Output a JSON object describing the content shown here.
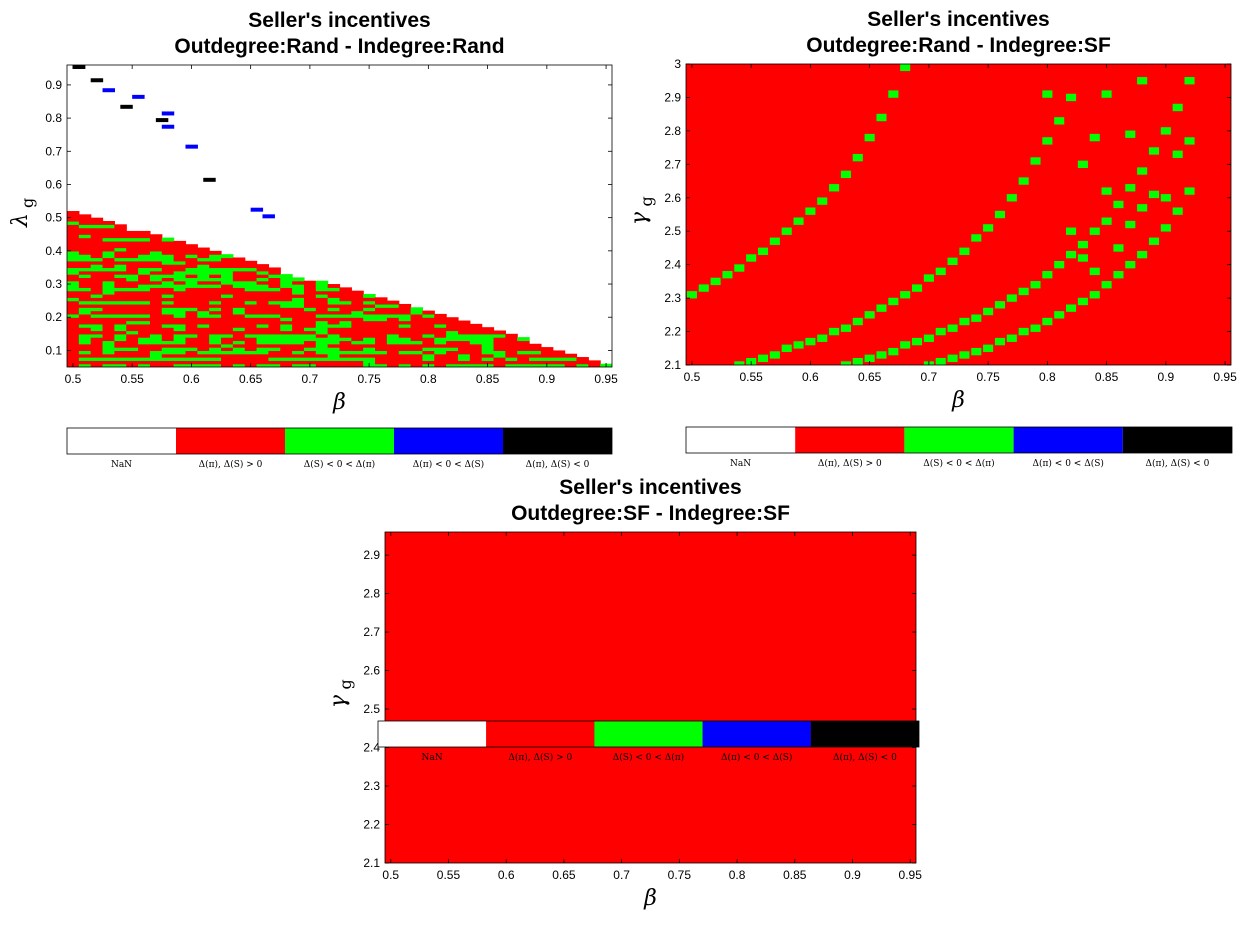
{
  "colorbar": {
    "labels": [
      "NaN",
      "Δ(π), Δ(S) > 0",
      "Δ(S) < 0 < Δ(π)",
      "Δ(π) < 0 < Δ(S)",
      "Δ(π), Δ(S) < 0"
    ],
    "colors": [
      "#ffffff",
      "#ff0000",
      "#00ff00",
      "#0000ff",
      "#000000"
    ]
  },
  "chart_data": [
    {
      "type": "heatmap",
      "title": [
        "Seller's incentives",
        "Outdegree:Rand - Indegree:Rand"
      ],
      "xlabel": "β",
      "ylabel": "λ",
      "ylabel_sub": "g",
      "xlim": [
        0.495,
        0.955
      ],
      "ylim": [
        0.05,
        0.96
      ],
      "xticks": [
        "0.5",
        "0.55",
        "0.6",
        "0.65",
        "0.7",
        "0.75",
        "0.8",
        "0.85",
        "0.9",
        "0.95"
      ],
      "yticks": [
        "0.1",
        "0.2",
        "0.3",
        "0.4",
        "0.5",
        "0.6",
        "0.7",
        "0.8",
        "0.9"
      ],
      "xtick_values": [
        0.5,
        0.55,
        0.6,
        0.65,
        0.7,
        0.75,
        0.8,
        0.85,
        0.9,
        0.95
      ],
      "ytick_values": [
        0.1,
        0.2,
        0.3,
        0.4,
        0.5,
        0.6,
        0.7,
        0.8,
        0.9
      ],
      "background_class": "Δ(π), Δ(S) > 0",
      "region": "lower-left triangle: cells exist where λ_g ≤ 1 - β",
      "minority_class": "Δ(S) < 0 < Δ(π)",
      "blue_cells": [
        [
          0.525,
          0.88
        ],
        [
          0.55,
          0.86
        ],
        [
          0.575,
          0.81
        ],
        [
          0.575,
          0.77
        ],
        [
          0.595,
          0.71
        ],
        [
          0.65,
          0.52
        ],
        [
          0.66,
          0.5
        ]
      ],
      "black_cells": [
        [
          0.5,
          0.95
        ],
        [
          0.515,
          0.91
        ],
        [
          0.54,
          0.83
        ],
        [
          0.57,
          0.79
        ],
        [
          0.61,
          0.61
        ]
      ]
    },
    {
      "type": "heatmap",
      "title": [
        "Seller's incentives",
        "Outdegree:Rand - Indegree:SF"
      ],
      "xlabel": "β",
      "ylabel": "γ",
      "ylabel_sub": "g",
      "xlim": [
        0.495,
        0.955
      ],
      "ylim": [
        2.1,
        3.0
      ],
      "xticks": [
        "0.5",
        "0.55",
        "0.6",
        "0.65",
        "0.7",
        "0.75",
        "0.8",
        "0.85",
        "0.9",
        "0.95"
      ],
      "yticks": [
        "2.1",
        "2.2",
        "2.3",
        "2.4",
        "2.5",
        "2.6",
        "2.7",
        "2.8",
        "2.9",
        "3"
      ],
      "xtick_values": [
        0.5,
        0.55,
        0.6,
        0.65,
        0.7,
        0.75,
        0.8,
        0.85,
        0.9,
        0.95
      ],
      "ytick_values": [
        2.1,
        2.2,
        2.3,
        2.4,
        2.5,
        2.6,
        2.7,
        2.8,
        2.9,
        3.0
      ],
      "background_class": "Δ(π), Δ(S) > 0",
      "minority_class": "Δ(S) < 0 < Δ(π)",
      "green_cells": [
        [
          0.5,
          2.31
        ],
        [
          0.51,
          2.33
        ],
        [
          0.52,
          2.35
        ],
        [
          0.53,
          2.37
        ],
        [
          0.54,
          2.39
        ],
        [
          0.55,
          2.42
        ],
        [
          0.56,
          2.44
        ],
        [
          0.57,
          2.47
        ],
        [
          0.58,
          2.5
        ],
        [
          0.59,
          2.53
        ],
        [
          0.6,
          2.56
        ],
        [
          0.61,
          2.59
        ],
        [
          0.62,
          2.63
        ],
        [
          0.63,
          2.67
        ],
        [
          0.64,
          2.72
        ],
        [
          0.65,
          2.78
        ],
        [
          0.66,
          2.84
        ],
        [
          0.67,
          2.91
        ],
        [
          0.68,
          2.99
        ],
        [
          0.54,
          2.1
        ],
        [
          0.55,
          2.11
        ],
        [
          0.56,
          2.12
        ],
        [
          0.57,
          2.13
        ],
        [
          0.58,
          2.15
        ],
        [
          0.59,
          2.16
        ],
        [
          0.6,
          2.17
        ],
        [
          0.61,
          2.18
        ],
        [
          0.62,
          2.2
        ],
        [
          0.63,
          2.21
        ],
        [
          0.64,
          2.23
        ],
        [
          0.65,
          2.25
        ],
        [
          0.66,
          2.27
        ],
        [
          0.67,
          2.29
        ],
        [
          0.68,
          2.31
        ],
        [
          0.69,
          2.33
        ],
        [
          0.7,
          2.36
        ],
        [
          0.71,
          2.38
        ],
        [
          0.72,
          2.41
        ],
        [
          0.73,
          2.44
        ],
        [
          0.74,
          2.48
        ],
        [
          0.75,
          2.51
        ],
        [
          0.76,
          2.55
        ],
        [
          0.77,
          2.6
        ],
        [
          0.78,
          2.65
        ],
        [
          0.79,
          2.71
        ],
        [
          0.8,
          2.77
        ],
        [
          0.81,
          2.83
        ],
        [
          0.82,
          2.9
        ],
        [
          0.63,
          2.1
        ],
        [
          0.64,
          2.11
        ],
        [
          0.65,
          2.12
        ],
        [
          0.66,
          2.13
        ],
        [
          0.67,
          2.14
        ],
        [
          0.68,
          2.16
        ],
        [
          0.69,
          2.17
        ],
        [
          0.7,
          2.18
        ],
        [
          0.71,
          2.2
        ],
        [
          0.72,
          2.21
        ],
        [
          0.73,
          2.23
        ],
        [
          0.74,
          2.24
        ],
        [
          0.75,
          2.26
        ],
        [
          0.76,
          2.28
        ],
        [
          0.77,
          2.3
        ],
        [
          0.78,
          2.32
        ],
        [
          0.79,
          2.34
        ],
        [
          0.8,
          2.37
        ],
        [
          0.81,
          2.4
        ],
        [
          0.82,
          2.43
        ],
        [
          0.83,
          2.46
        ],
        [
          0.84,
          2.5
        ],
        [
          0.85,
          2.53
        ],
        [
          0.86,
          2.58
        ],
        [
          0.87,
          2.63
        ],
        [
          0.88,
          2.68
        ],
        [
          0.89,
          2.74
        ],
        [
          0.9,
          2.8
        ],
        [
          0.91,
          2.87
        ],
        [
          0.92,
          2.95
        ],
        [
          0.7,
          2.1
        ],
        [
          0.71,
          2.11
        ],
        [
          0.72,
          2.12
        ],
        [
          0.73,
          2.13
        ],
        [
          0.74,
          2.14
        ],
        [
          0.75,
          2.15
        ],
        [
          0.76,
          2.17
        ],
        [
          0.77,
          2.18
        ],
        [
          0.78,
          2.2
        ],
        [
          0.79,
          2.21
        ],
        [
          0.8,
          2.23
        ],
        [
          0.81,
          2.25
        ],
        [
          0.82,
          2.27
        ],
        [
          0.83,
          2.29
        ],
        [
          0.84,
          2.31
        ],
        [
          0.85,
          2.34
        ],
        [
          0.86,
          2.37
        ],
        [
          0.87,
          2.4
        ],
        [
          0.88,
          2.43
        ],
        [
          0.89,
          2.47
        ],
        [
          0.9,
          2.51
        ],
        [
          0.91,
          2.56
        ],
        [
          0.92,
          2.62
        ],
        [
          0.8,
          2.91
        ],
        [
          0.83,
          2.7
        ],
        [
          0.84,
          2.78
        ],
        [
          0.85,
          2.91
        ],
        [
          0.87,
          2.79
        ],
        [
          0.88,
          2.95
        ],
        [
          0.89,
          2.61
        ],
        [
          0.9,
          2.6
        ],
        [
          0.91,
          2.73
        ],
        [
          0.92,
          2.77
        ],
        [
          0.88,
          2.57
        ],
        [
          0.86,
          2.45
        ],
        [
          0.82,
          2.5
        ],
        [
          0.84,
          2.38
        ],
        [
          0.83,
          2.42
        ],
        [
          0.87,
          2.52
        ],
        [
          0.85,
          2.62
        ]
      ]
    },
    {
      "type": "heatmap",
      "title": [
        "Seller's incentives",
        "Outdegree:SF - Indegree:SF"
      ],
      "xlabel": "β",
      "ylabel": "γ",
      "ylabel_sub": "g",
      "xlim": [
        0.495,
        0.955
      ],
      "ylim": [
        2.1,
        2.96
      ],
      "xticks": [
        "0.5",
        "0.55",
        "0.6",
        "0.65",
        "0.7",
        "0.75",
        "0.8",
        "0.85",
        "0.9",
        "0.95"
      ],
      "yticks": [
        "2.1",
        "2.2",
        "2.3",
        "2.4",
        "2.5",
        "2.6",
        "2.7",
        "2.8",
        "2.9"
      ],
      "xtick_values": [
        0.5,
        0.55,
        0.6,
        0.65,
        0.7,
        0.75,
        0.8,
        0.85,
        0.9,
        0.95
      ],
      "ytick_values": [
        2.1,
        2.2,
        2.3,
        2.4,
        2.5,
        2.6,
        2.7,
        2.8,
        2.9
      ],
      "background_class": "Δ(π), Δ(S) > 0",
      "uniform": true
    }
  ]
}
